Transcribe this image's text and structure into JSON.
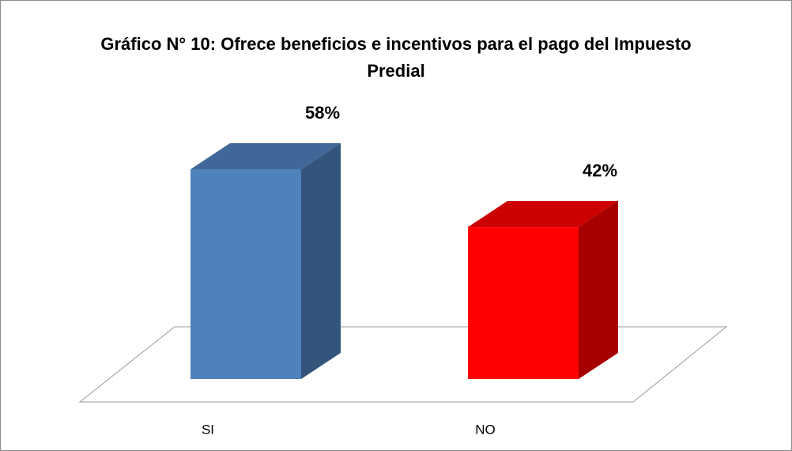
{
  "chart_data": {
    "type": "bar",
    "title": "Gráfico N° 10: Ofrece beneficios e incentivos para el pago del Impuesto Predial",
    "categories": [
      "SI",
      "NO"
    ],
    "values": [
      58,
      42
    ],
    "value_labels": [
      "58%",
      "42%"
    ],
    "colors": [
      "#4f81bd",
      "#ff0000"
    ]
  }
}
